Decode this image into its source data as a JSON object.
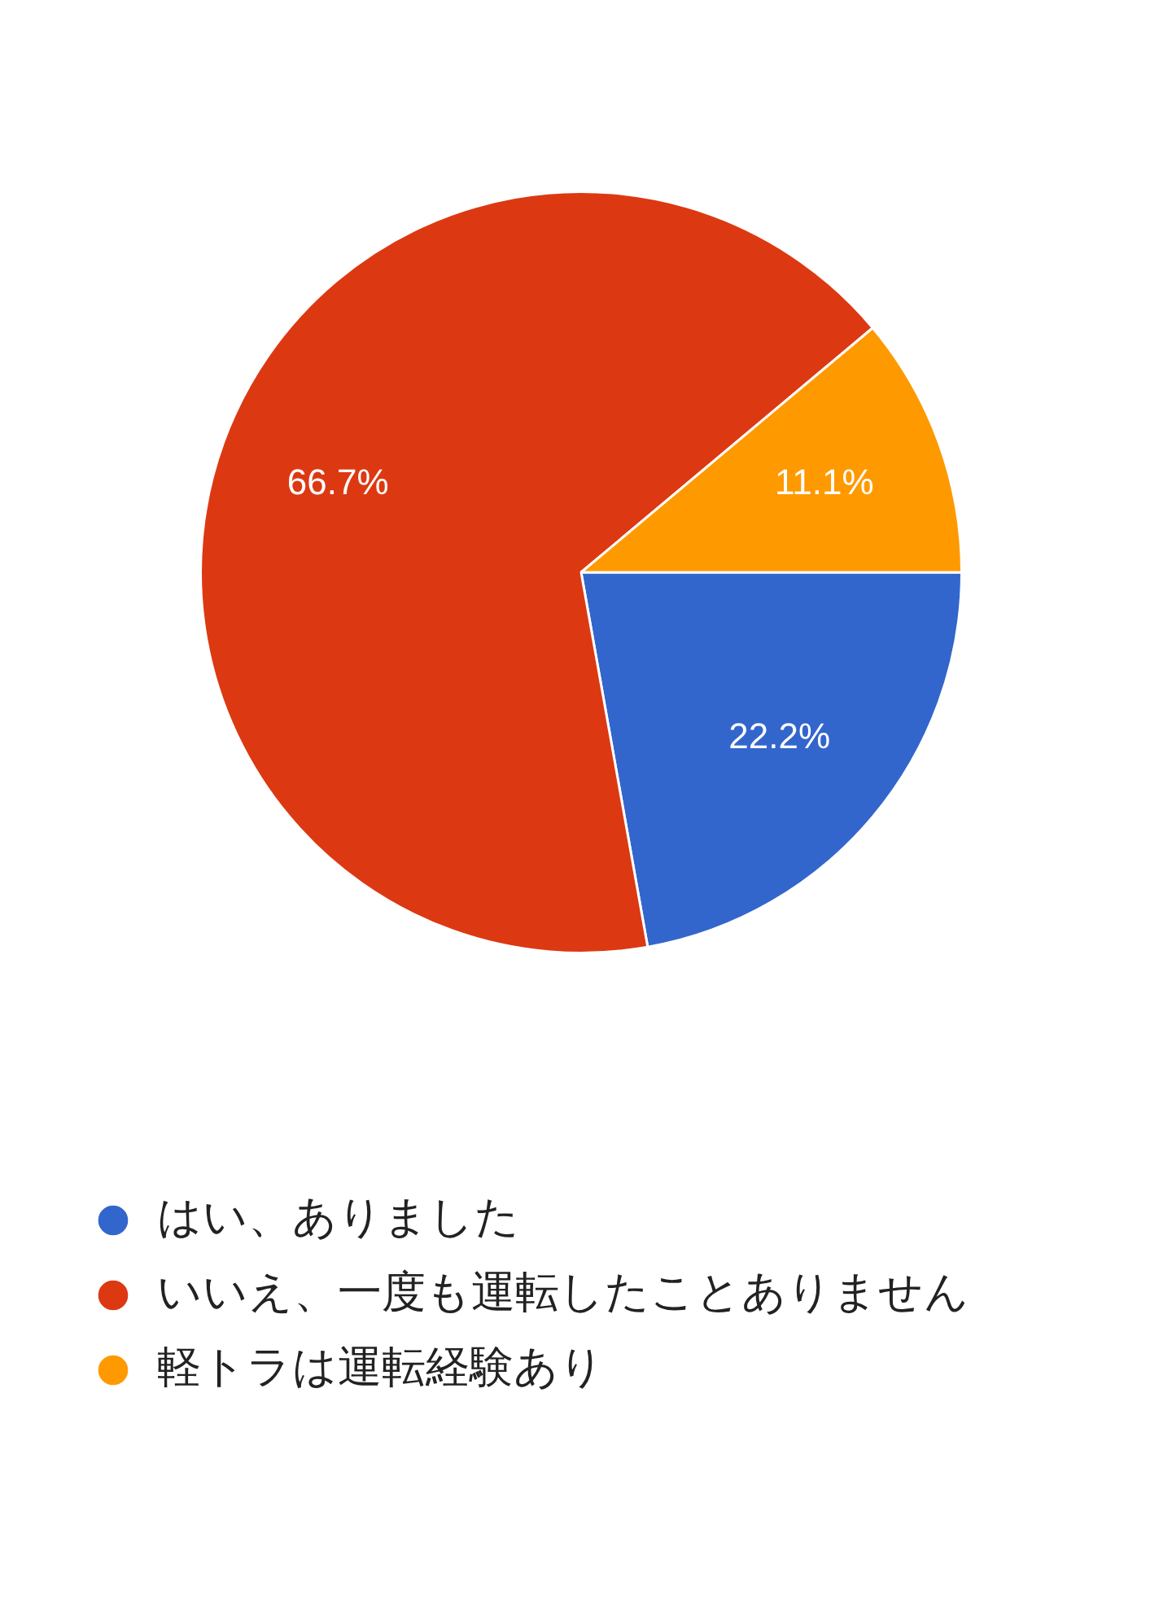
{
  "chart_data": {
    "type": "pie",
    "categories": [
      "はい、ありました",
      "いいえ、一度も運転したことありません",
      "軽トラは運転経験あり"
    ],
    "values": [
      22.2,
      66.7,
      11.1
    ],
    "colors": [
      "#3366cc",
      "#dc3912",
      "#ff9900"
    ],
    "value_labels": [
      "22.2%",
      "66.7%",
      "11.1%"
    ],
    "legend": "bottom left"
  }
}
